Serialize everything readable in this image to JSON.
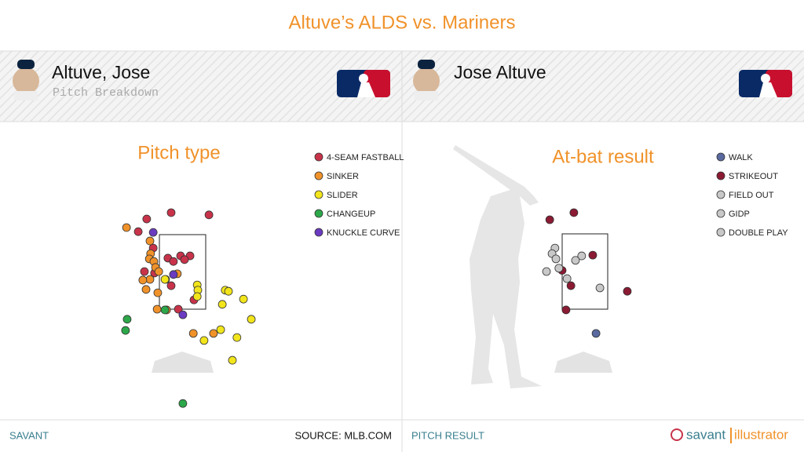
{
  "title": "Altuve’s ALDS vs. Mariners",
  "panels": [
    {
      "name": "Altuve, Jose",
      "subtitle": "Pitch Breakdown",
      "footer_left": "SAVANT",
      "footer_right": "SOURCE: MLB.COM"
    },
    {
      "name": "Jose Altuve",
      "footer_left": "PITCH RESULT",
      "brand_1": "savant",
      "brand_2": "illustrator"
    }
  ],
  "chart_data": [
    {
      "type": "scatter",
      "title": "Pitch type",
      "legend": "upper right",
      "xlim": [
        -2.5,
        2.5
      ],
      "ylim": [
        -1.2,
        5
      ],
      "series": [
        {
          "name": "4-SEAM FASTBALL",
          "color": "#c8334a",
          "x": [
            -0.35,
            0.81,
            -1.1,
            -1.36,
            -0.9,
            -0.45,
            -0.28,
            -0.06,
            0.23,
            0.06,
            -1.17,
            -0.86,
            -0.35,
            -0.13,
            0.35
          ],
          "y": [
            4.09,
            4.03,
            3.92,
            3.58,
            3.14,
            2.87,
            2.78,
            2.93,
            2.93,
            2.83,
            2.51,
            2.47,
            2.13,
            1.5,
            1.75
          ]
        },
        {
          "name": "SINKER",
          "color": "#f0922a",
          "x": [
            -1.72,
            -1.0,
            -0.98,
            -1.02,
            -0.88,
            -0.83,
            -0.73,
            -1.0,
            -1.22,
            -1.12,
            -0.76,
            -0.52,
            -0.16,
            -0.49,
            -0.78,
            0.33,
            0.95
          ],
          "y": [
            3.69,
            3.33,
            2.99,
            2.85,
            2.78,
            2.62,
            2.51,
            2.3,
            2.28,
            2.03,
            1.94,
            2.3,
            2.45,
            1.48,
            1.5,
            0.85,
            0.85
          ]
        },
        {
          "name": "SLIDER",
          "color": "#f2e51b",
          "x": [
            0.45,
            0.47,
            0.45,
            1.31,
            1.41,
            1.22,
            1.87,
            2.11,
            1.17,
            0.66,
            1.67,
            1.53,
            -0.54
          ],
          "y": [
            2.15,
            2.01,
            1.84,
            2.01,
            1.98,
            1.63,
            1.77,
            1.23,
            0.95,
            0.66,
            0.74,
            0.13,
            2.3
          ]
        },
        {
          "name": "CHANGEUP",
          "color": "#2ca84a",
          "x": [
            -1.7,
            -1.75,
            -0.54,
            0.01
          ],
          "y": [
            1.23,
            0.93,
            1.48,
            -1.03
          ]
        },
        {
          "name": "KNUCKLE CURVE",
          "color": "#6a3bc0",
          "x": [
            -0.9,
            -0.28,
            0.01
          ],
          "y": [
            3.56,
            2.43,
            1.35
          ]
        }
      ]
    },
    {
      "type": "scatter",
      "title": "At-bat result",
      "legend": "upper right",
      "xlim": [
        -2.5,
        2.5
      ],
      "ylim": [
        -1.2,
        5
      ],
      "series": [
        {
          "name": "WALK",
          "color": "#5a6aa0",
          "x": [
            0.34
          ],
          "y": [
            0.85
          ]
        },
        {
          "name": "STRIKEOUT",
          "color": "#8b1a33",
          "x": [
            -1.08,
            -0.34,
            0.24,
            -0.7,
            -0.43,
            1.3,
            -0.58
          ],
          "y": [
            3.9,
            4.09,
            2.95,
            2.54,
            2.13,
            1.98,
            1.48
          ]
        },
        {
          "name": "FIELD OUT",
          "color": "#c8c8c8",
          "x": [
            -0.92,
            -1.01,
            -0.89,
            -0.1,
            -0.29,
            -1.18,
            -0.8
          ],
          "y": [
            3.14,
            2.99,
            2.85,
            2.93,
            2.81,
            2.51,
            2.6
          ]
        },
        {
          "name": "GIDP",
          "color": "#c8c8c8",
          "x": [
            0.46
          ],
          "y": [
            2.07
          ]
        },
        {
          "name": "DOUBLE PLAY",
          "color": "#c8c8c8",
          "x": [
            -0.55
          ],
          "y": [
            2.32
          ]
        }
      ]
    }
  ]
}
